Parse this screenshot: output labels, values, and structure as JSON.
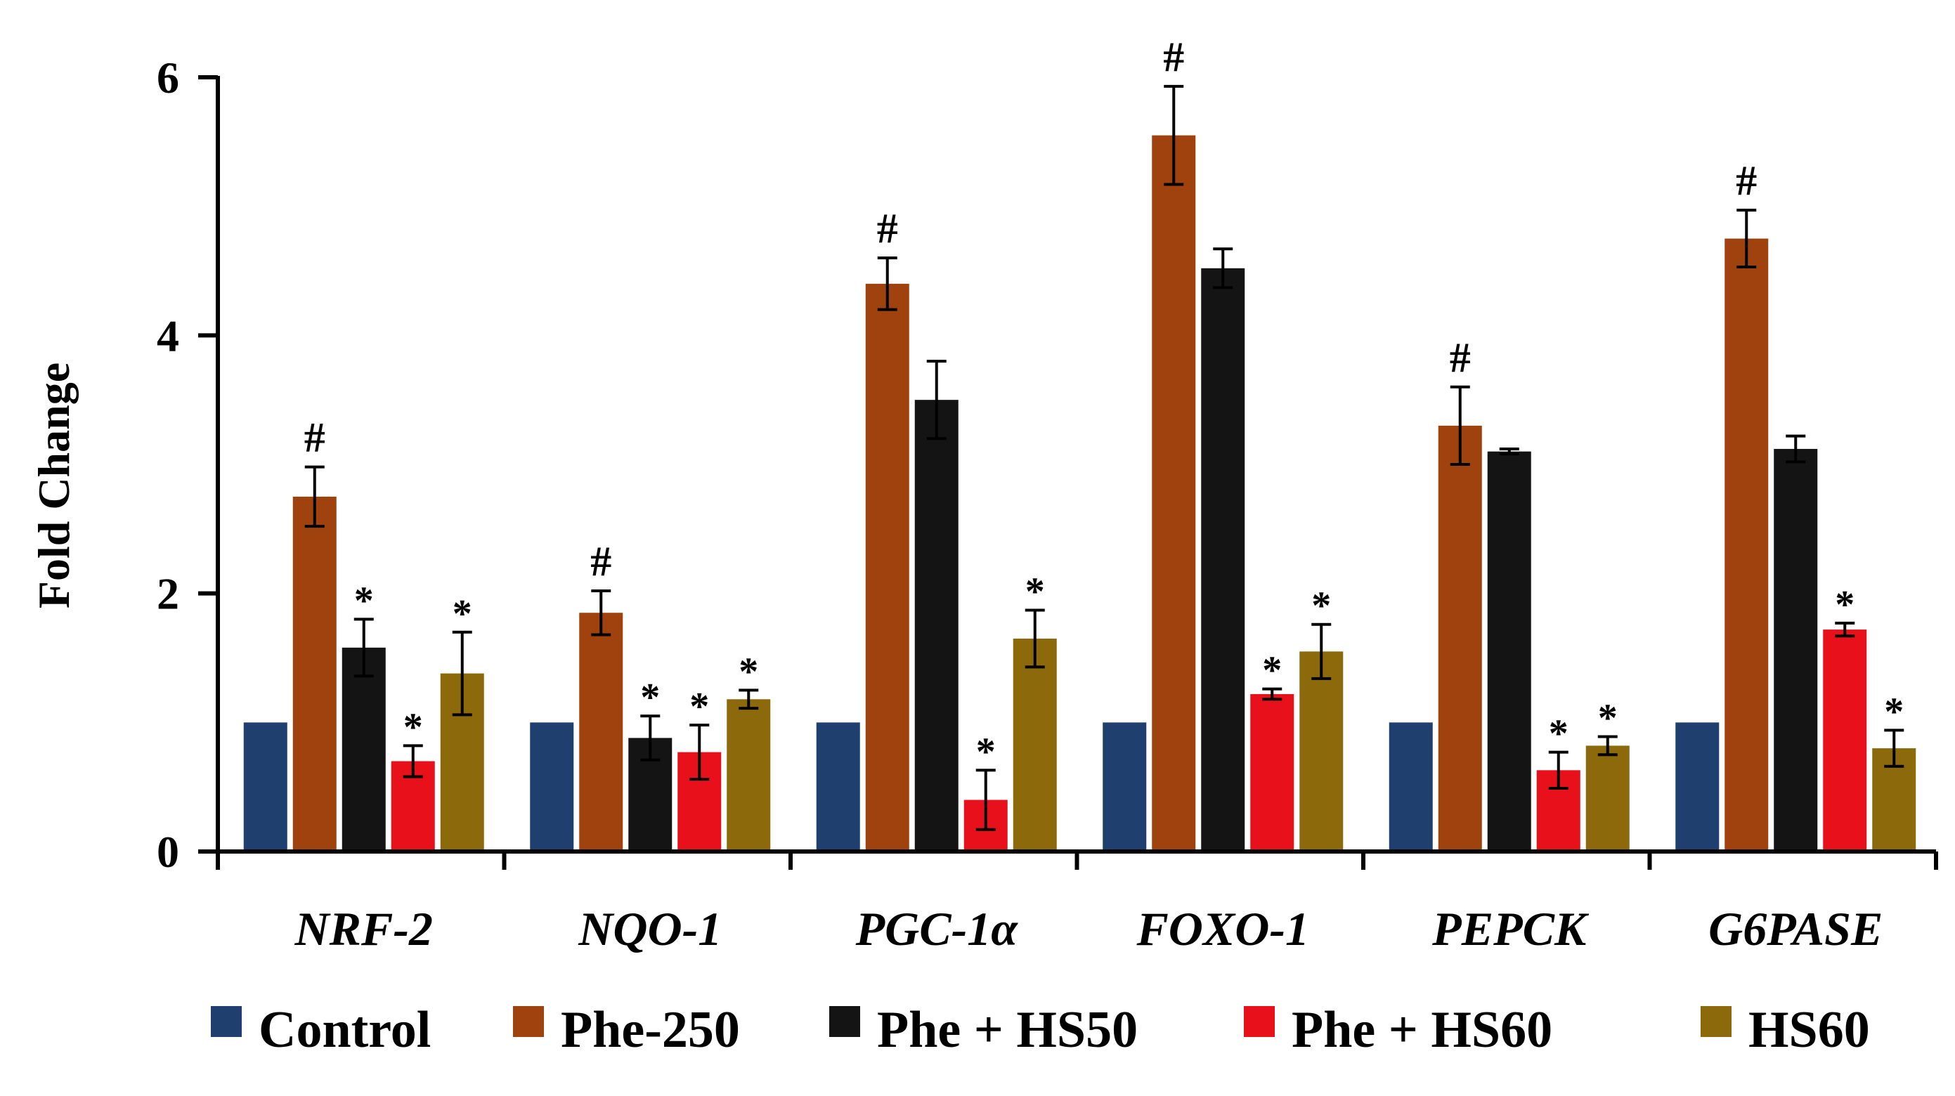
{
  "chart_data": {
    "type": "bar",
    "title": "",
    "xlabel": "",
    "ylabel": "Fold Change",
    "ylim": [
      0,
      6
    ],
    "yticks": [
      0,
      2,
      4,
      6
    ],
    "categories": [
      "NRF-2",
      "NQO-1",
      "PGC-1α",
      "FOXO-1",
      "PEPCK",
      "G6PASE"
    ],
    "series": [
      {
        "name": "Control",
        "color": "#1F3F6E",
        "values": [
          1,
          1,
          1,
          1,
          1,
          1
        ],
        "errors": [
          0.01,
          0.01,
          0.01,
          0.01,
          0.01,
          0.01
        ],
        "annotations": [
          "",
          "",
          "",
          "",
          "",
          ""
        ]
      },
      {
        "name": "Phe-250",
        "color": "#A0420E",
        "values": [
          2.75,
          1.85,
          4.4,
          5.55,
          3.3,
          4.75
        ],
        "errors": [
          0.23,
          0.17,
          0.2,
          0.38,
          0.3,
          0.22
        ],
        "annotations": [
          "#",
          "#",
          "#",
          "#",
          "#",
          "#"
        ]
      },
      {
        "name": "Phe + HS50",
        "color": "#141414",
        "values": [
          1.58,
          0.88,
          3.5,
          4.52,
          3.1,
          3.12
        ],
        "errors": [
          0.22,
          0.17,
          0.3,
          0.15,
          0.02,
          0.1
        ],
        "annotations": [
          "*",
          "*",
          "",
          "",
          "",
          ""
        ]
      },
      {
        "name": "Phe + HS60",
        "color": "#E8101A",
        "values": [
          0.7,
          0.77,
          0.4,
          1.22,
          0.63,
          1.72
        ],
        "errors": [
          0.12,
          0.21,
          0.23,
          0.04,
          0.14,
          0.05
        ],
        "annotations": [
          "*",
          "*",
          "*",
          "*",
          "*",
          "*"
        ]
      },
      {
        "name": "HS60",
        "color": "#8C6A0C",
        "values": [
          1.38,
          1.18,
          1.65,
          1.55,
          0.82,
          0.8
        ],
        "errors": [
          0.32,
          0.07,
          0.22,
          0.21,
          0.07,
          0.14
        ],
        "annotations": [
          "*",
          "*",
          "*",
          "*",
          "*",
          "*"
        ]
      }
    ],
    "legend_position": "bottom"
  }
}
